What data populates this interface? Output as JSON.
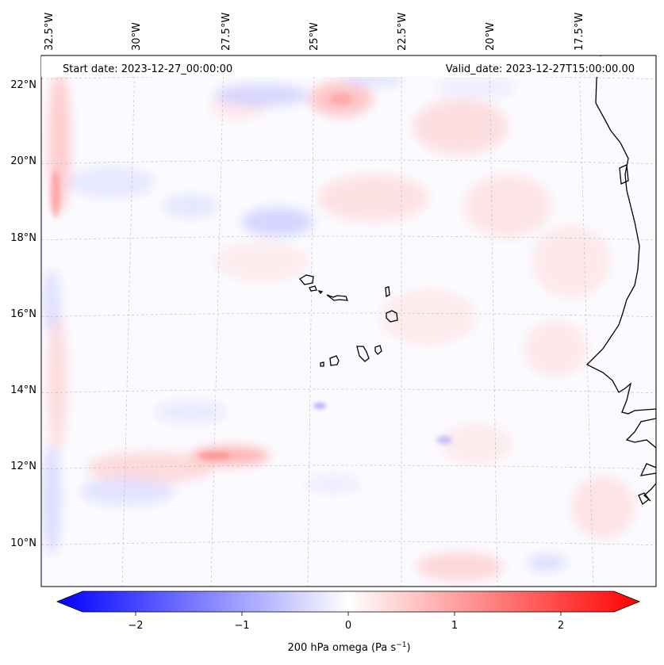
{
  "map": {
    "field_name": "200 hPa omega",
    "start_label": "Start date: 2023-12-27_00:00:00",
    "valid_label": "Valid_date: 2023-12-27T15:00:00.00",
    "lon_labels": [
      "32.5°W",
      "30°W",
      "27.5°W",
      "25°W",
      "22.5°W",
      "20°W",
      "17.5°W"
    ],
    "lat_labels": [
      "22°N",
      "20°N",
      "18°N",
      "16°N",
      "14°N",
      "12°N",
      "10°N"
    ],
    "colors": {
      "negative": "#0000ff",
      "neutral": "#ffffff",
      "positive": "#ff0000",
      "coast": "#000000",
      "grid": "#b0b0b0"
    }
  },
  "colorbar": {
    "min": -2.75,
    "max": 2.75,
    "ticks": [
      {
        "value": -2,
        "label": "−2"
      },
      {
        "value": -1,
        "label": "−1"
      },
      {
        "value": 0,
        "label": "0"
      },
      {
        "value": 1,
        "label": "1"
      },
      {
        "value": 2,
        "label": "2"
      }
    ],
    "label_main": "200 hPa omega (Pa s",
    "label_exp": "−1",
    "label_close": ")"
  }
}
